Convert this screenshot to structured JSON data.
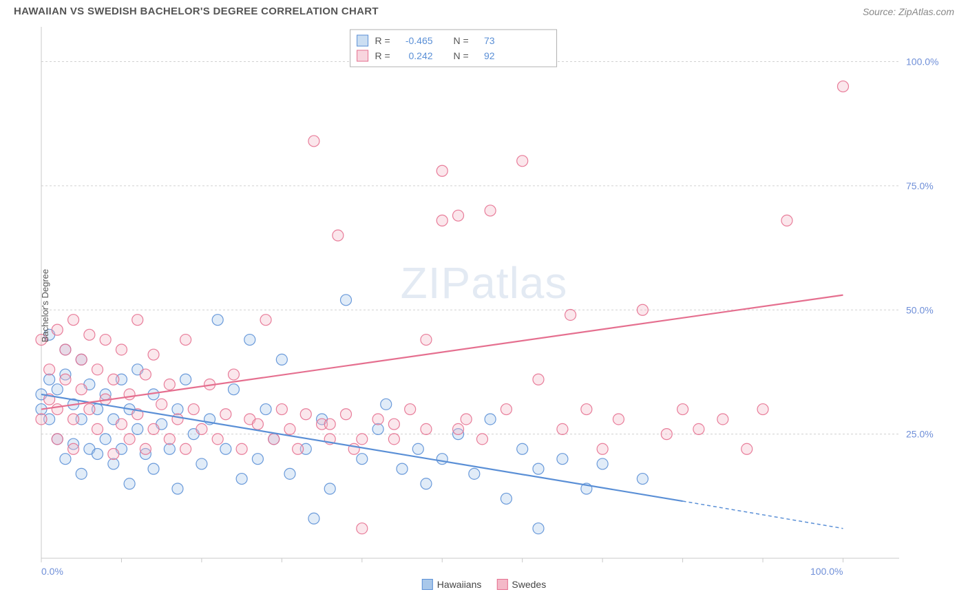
{
  "header": {
    "title": "HAWAIIAN VS SWEDISH BACHELOR'S DEGREE CORRELATION CHART",
    "source": "Source: ZipAtlas.com"
  },
  "watermark_text": "ZIPatlas",
  "chart": {
    "type": "scatter",
    "ylabel": "Bachelor's Degree",
    "plot_background": "#ffffff",
    "grid_color": "#d0d0d0",
    "axis_line_color": "#c8c8c8",
    "tick_label_color": "#6f8fd8",
    "text_color": "#555555",
    "xlim": [
      0,
      107
    ],
    "ylim": [
      0,
      107
    ],
    "y_gridlines": [
      25,
      50,
      75,
      100
    ],
    "x_minor_ticks": [
      0,
      10,
      20,
      30,
      40,
      50,
      60,
      70,
      80,
      90,
      100
    ],
    "x_tick_labels": [
      {
        "pos": 0,
        "label": "0.0%"
      },
      {
        "pos": 100,
        "label": "100.0%"
      }
    ],
    "y_tick_labels": [
      {
        "pos": 25,
        "label": "25.0%"
      },
      {
        "pos": 50,
        "label": "50.0%"
      },
      {
        "pos": 75,
        "label": "75.0%"
      },
      {
        "pos": 100,
        "label": "100.0%"
      }
    ],
    "point_radius": 8,
    "point_fill_opacity": 0.35,
    "point_stroke_opacity": 0.9,
    "point_stroke_width": 1.2,
    "trend_line_width": 2.2,
    "series": [
      {
        "name": "Hawaiians",
        "color": "#5a8fd6",
        "fill": "#a9c8ea",
        "trend": {
          "x1": 0,
          "y1": 33,
          "x2": 80,
          "y2": 11.5,
          "extrap_x2": 100,
          "extrap_y2": 6
        },
        "stats": {
          "R": "-0.465",
          "N": "73"
        },
        "points": [
          [
            0,
            33
          ],
          [
            0,
            30
          ],
          [
            1,
            28
          ],
          [
            1,
            36
          ],
          [
            1,
            45
          ],
          [
            2,
            24
          ],
          [
            2,
            34
          ],
          [
            3,
            42
          ],
          [
            3,
            20
          ],
          [
            3,
            37
          ],
          [
            4,
            31
          ],
          [
            4,
            23
          ],
          [
            5,
            40
          ],
          [
            5,
            28
          ],
          [
            5,
            17
          ],
          [
            6,
            22
          ],
          [
            6,
            35
          ],
          [
            7,
            30
          ],
          [
            7,
            21
          ],
          [
            8,
            24
          ],
          [
            8,
            33
          ],
          [
            9,
            19
          ],
          [
            9,
            28
          ],
          [
            10,
            36
          ],
          [
            10,
            22
          ],
          [
            11,
            30
          ],
          [
            11,
            15
          ],
          [
            12,
            26
          ],
          [
            12,
            38
          ],
          [
            13,
            21
          ],
          [
            14,
            33
          ],
          [
            14,
            18
          ],
          [
            15,
            27
          ],
          [
            16,
            22
          ],
          [
            17,
            30
          ],
          [
            17,
            14
          ],
          [
            18,
            36
          ],
          [
            19,
            25
          ],
          [
            20,
            19
          ],
          [
            21,
            28
          ],
          [
            22,
            48
          ],
          [
            23,
            22
          ],
          [
            24,
            34
          ],
          [
            25,
            16
          ],
          [
            26,
            44
          ],
          [
            27,
            20
          ],
          [
            28,
            30
          ],
          [
            29,
            24
          ],
          [
            30,
            40
          ],
          [
            31,
            17
          ],
          [
            33,
            22
          ],
          [
            34,
            8
          ],
          [
            35,
            28
          ],
          [
            36,
            14
          ],
          [
            38,
            52
          ],
          [
            40,
            20
          ],
          [
            42,
            26
          ],
          [
            43,
            31
          ],
          [
            45,
            18
          ],
          [
            47,
            22
          ],
          [
            48,
            15
          ],
          [
            50,
            20
          ],
          [
            52,
            25
          ],
          [
            54,
            17
          ],
          [
            56,
            28
          ],
          [
            58,
            12
          ],
          [
            60,
            22
          ],
          [
            62,
            18
          ],
          [
            65,
            20
          ],
          [
            68,
            14
          ],
          [
            70,
            19
          ],
          [
            75,
            16
          ],
          [
            62,
            6
          ]
        ]
      },
      {
        "name": "Swedes",
        "color": "#e56f8f",
        "fill": "#f4b9c8",
        "trend": {
          "x1": 0,
          "y1": 30,
          "x2": 100,
          "y2": 53
        },
        "stats": {
          "R": "0.242",
          "N": "92"
        },
        "points": [
          [
            0,
            28
          ],
          [
            0,
            44
          ],
          [
            1,
            38
          ],
          [
            1,
            32
          ],
          [
            2,
            46
          ],
          [
            2,
            30
          ],
          [
            2,
            24
          ],
          [
            3,
            36
          ],
          [
            3,
            42
          ],
          [
            4,
            48
          ],
          [
            4,
            28
          ],
          [
            4,
            22
          ],
          [
            5,
            40
          ],
          [
            5,
            34
          ],
          [
            6,
            45
          ],
          [
            6,
            30
          ],
          [
            7,
            26
          ],
          [
            7,
            38
          ],
          [
            8,
            44
          ],
          [
            8,
            32
          ],
          [
            9,
            21
          ],
          [
            9,
            36
          ],
          [
            10,
            27
          ],
          [
            10,
            42
          ],
          [
            11,
            24
          ],
          [
            11,
            33
          ],
          [
            12,
            48
          ],
          [
            12,
            29
          ],
          [
            13,
            22
          ],
          [
            13,
            37
          ],
          [
            14,
            26
          ],
          [
            14,
            41
          ],
          [
            15,
            31
          ],
          [
            16,
            24
          ],
          [
            16,
            35
          ],
          [
            17,
            28
          ],
          [
            18,
            44
          ],
          [
            18,
            22
          ],
          [
            19,
            30
          ],
          [
            20,
            26
          ],
          [
            21,
            35
          ],
          [
            22,
            24
          ],
          [
            23,
            29
          ],
          [
            24,
            37
          ],
          [
            25,
            22
          ],
          [
            26,
            28
          ],
          [
            27,
            27
          ],
          [
            28,
            48
          ],
          [
            29,
            24
          ],
          [
            30,
            30
          ],
          [
            31,
            26
          ],
          [
            32,
            22
          ],
          [
            33,
            29
          ],
          [
            34,
            84
          ],
          [
            35,
            27
          ],
          [
            36,
            24
          ],
          [
            37,
            65
          ],
          [
            38,
            29
          ],
          [
            39,
            22
          ],
          [
            40,
            6
          ],
          [
            42,
            28
          ],
          [
            44,
            24
          ],
          [
            46,
            30
          ],
          [
            48,
            44
          ],
          [
            50,
            78
          ],
          [
            50,
            68
          ],
          [
            52,
            69
          ],
          [
            53,
            28
          ],
          [
            55,
            24
          ],
          [
            56,
            70
          ],
          [
            58,
            30
          ],
          [
            60,
            80
          ],
          [
            62,
            36
          ],
          [
            65,
            26
          ],
          [
            66,
            49
          ],
          [
            68,
            30
          ],
          [
            70,
            22
          ],
          [
            72,
            28
          ],
          [
            75,
            50
          ],
          [
            78,
            25
          ],
          [
            80,
            30
          ],
          [
            82,
            26
          ],
          [
            85,
            28
          ],
          [
            88,
            22
          ],
          [
            90,
            30
          ],
          [
            100,
            95
          ],
          [
            93,
            68
          ],
          [
            52,
            26
          ],
          [
            48,
            26
          ],
          [
            44,
            27
          ],
          [
            40,
            24
          ],
          [
            36,
            27
          ]
        ]
      }
    ],
    "top_legend": {
      "border_color": "#b0b0b0",
      "bg": "#ffffff",
      "label_color": "#555555",
      "value_color": "#5a8fd6"
    }
  }
}
